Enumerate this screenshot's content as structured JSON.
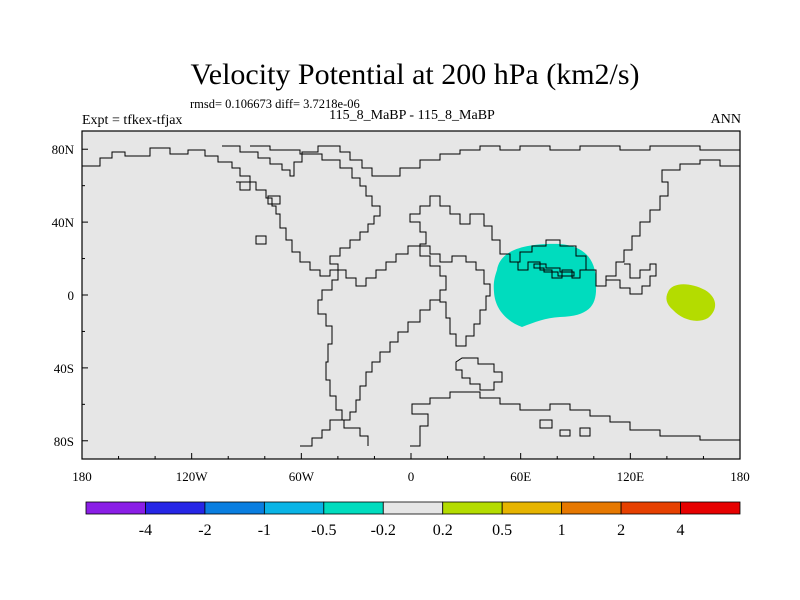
{
  "header": {
    "title": "Velocity Potential at 200 hPa (km2/s)",
    "stats": "rmsd= 0.106673 diff= 3.7218e-06",
    "experiment": "Expt = tfkex-tfjax",
    "case": "115_8_MaBP - 115_8_MaBP",
    "season": "ANN"
  },
  "axes": {
    "x_ticks": [
      {
        "value": -180,
        "label": "180"
      },
      {
        "value": -120,
        "label": "120W"
      },
      {
        "value": -60,
        "label": "60W"
      },
      {
        "value": 0,
        "label": "0"
      },
      {
        "value": 60,
        "label": "60E"
      },
      {
        "value": 120,
        "label": "120E"
      },
      {
        "value": 180,
        "label": "180"
      }
    ],
    "y_ticks": [
      {
        "value": 80,
        "label": "80N"
      },
      {
        "value": 40,
        "label": "40N"
      },
      {
        "value": 0,
        "label": "0"
      },
      {
        "value": -40,
        "label": "40S"
      },
      {
        "value": -80,
        "label": "80S"
      }
    ],
    "lon_range": [
      -180,
      180
    ],
    "lat_range": [
      -90,
      90
    ]
  },
  "colorbar": {
    "colors": [
      "#8a1ee6",
      "#2626e6",
      "#0a7ee0",
      "#0ab4e6",
      "#00dcbe",
      "#e6e6e6",
      "#b4dc00",
      "#e6b400",
      "#e67800",
      "#e64000",
      "#e60000"
    ],
    "labels": [
      "-4",
      "-2",
      "-1",
      "-0.5",
      "-0.2",
      "0.2",
      "0.5",
      "1",
      "2",
      "4"
    ]
  },
  "map": {
    "background": "#e6e6e6",
    "features": [
      {
        "name": "negative-anomaly",
        "value_bin": "-0.5 to -0.2",
        "color": "#00dcbe",
        "center_lon": 80,
        "center_lat": 3
      },
      {
        "name": "positive-anomaly",
        "value_bin": "0.2 to 0.5",
        "color": "#b4dc00",
        "center_lon": 153,
        "center_lat": -5
      }
    ]
  }
}
